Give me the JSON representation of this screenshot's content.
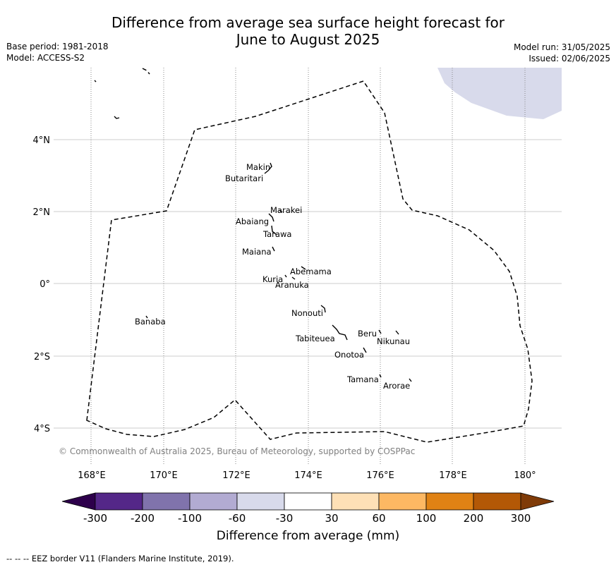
{
  "title_line1": "Difference from average sea surface height forecast for",
  "title_line2": "June to August 2025",
  "meta_left": [
    "Base period: 1981-2018",
    "Model: ACCESS-S2"
  ],
  "meta_right": [
    "Model run: 31/05/2025",
    "Issued: 02/06/2025"
  ],
  "copyright": "© Commonwealth of Australia 2025, Bureau of Meteorology, supported by COSPPac",
  "footnote": "--  --  -- EEZ border V11 (Flanders Marine Institute, 2019).",
  "lon_labels": [
    "168°E",
    "170°E",
    "172°E",
    "174°E",
    "176°E",
    "178°E",
    "180°"
  ],
  "lat_labels": [
    "4°N",
    "2°N",
    "0°",
    "2°S",
    "4°S"
  ],
  "islands": [
    {
      "name": "Makin"
    },
    {
      "name": "Butaritari"
    },
    {
      "name": "Marakei"
    },
    {
      "name": "Abaiang"
    },
    {
      "name": "Tarawa"
    },
    {
      "name": "Maiana"
    },
    {
      "name": "Abemama"
    },
    {
      "name": "Kuria"
    },
    {
      "name": "Aranuka"
    },
    {
      "name": "Nonouti"
    },
    {
      "name": "Banaba"
    },
    {
      "name": "Beru"
    },
    {
      "name": "Tabiteuea"
    },
    {
      "name": "Nikunau"
    },
    {
      "name": "Onotoa"
    },
    {
      "name": "Tamana"
    },
    {
      "name": "Arorae"
    }
  ],
  "colorbar": {
    "label": "Difference from average (mm)",
    "ticks": [
      "-300",
      "-200",
      "-100",
      "-60",
      "-30",
      "30",
      "60",
      "100",
      "200",
      "300"
    ],
    "colors": [
      "#2d004b",
      "#542788",
      "#8073ac",
      "#b2abd2",
      "#d8daeb",
      "#ffffff",
      "#fee0b6",
      "#fdb863",
      "#e08214",
      "#b35806",
      "#7f3b08"
    ]
  }
}
